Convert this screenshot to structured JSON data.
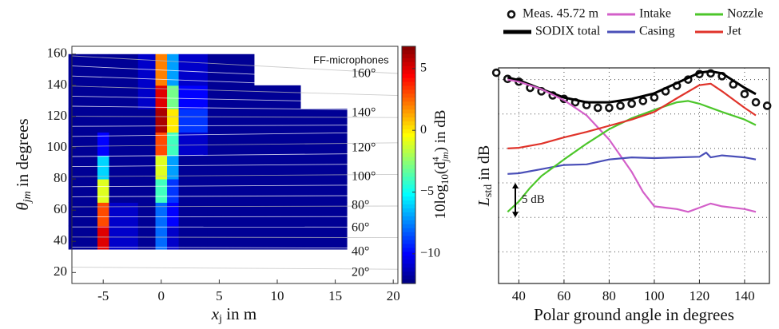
{
  "chart_data": [
    {
      "type": "heatmap",
      "x_edges": [
        -8,
        -5.5,
        -4.5,
        -2,
        -0.5,
        0.5,
        1.5,
        4,
        8,
        12,
        16
      ],
      "y_edges": [
        35,
        50,
        65,
        80,
        95,
        110,
        125,
        140,
        160
      ],
      "z": [
        [
          -12,
          5,
          -11,
          -12,
          -8,
          -11,
          -12,
          -12,
          -12,
          -12
        ],
        [
          -12,
          3,
          -11,
          -12,
          -8,
          -10,
          -12,
          -12,
          -12,
          -12
        ],
        [
          -12,
          -1,
          -12,
          -12,
          -4,
          -9,
          -12,
          -12,
          -12,
          -12
        ],
        [
          -12,
          -6,
          -12,
          -12,
          -1,
          -7,
          -12,
          -12,
          -12,
          -12
        ],
        [
          -12,
          -10,
          -12,
          -12,
          3,
          -4,
          -11,
          -12,
          -12,
          -12
        ],
        [
          -12,
          -12,
          -12,
          -12,
          6,
          0,
          -9,
          -12,
          -12,
          -12
        ],
        [
          -12,
          -12,
          -12,
          -11,
          5,
          -3,
          -10,
          -12,
          -12,
          null
        ],
        [
          -12,
          -12,
          -12,
          -11,
          2,
          -7,
          -11,
          -12,
          null,
          null
        ]
      ],
      "xlim": [
        -7.7,
        20.4
      ],
      "ylim": [
        13,
        165
      ],
      "xticks": [
        -5,
        0,
        5,
        10,
        15,
        20
      ],
      "yticks": [
        20,
        40,
        60,
        80,
        100,
        120,
        140,
        160
      ],
      "zlim": [
        -12.4,
        6.8
      ],
      "colorbar_ticks": [
        5,
        0,
        {
          "value": -5,
          "label": "−5"
        },
        {
          "value": -10,
          "label": "−10"
        }
      ],
      "xlabel": [
        "x",
        "j",
        " in m"
      ],
      "ylabel": [
        "θ",
        "jm",
        " in degrees"
      ],
      "colorbar_label": [
        "10log",
        "10",
        "(d",
        "4",
        "jm",
        ") in dB"
      ],
      "annotation": "FF-microphones",
      "angle_labels": [
        "160°",
        "140°",
        "120°",
        "100°",
        "80°",
        "60°",
        "40°",
        "20°"
      ]
    },
    {
      "type": "line",
      "xlim": [
        31,
        151
      ],
      "ylim": [
        0.4,
        31.7
      ],
      "xticks": [
        40,
        60,
        80,
        100,
        120,
        140
      ],
      "ygrid_lines": [
        5,
        10,
        15,
        20,
        25,
        30
      ],
      "grid": true,
      "xlabel": "Polar ground angle in degrees",
      "ylabel": [
        "L",
        "std",
        " in dB"
      ],
      "scale_bar": {
        "value": 5,
        "from": 10,
        "label": "5 dB"
      },
      "series": [
        {
          "name": "Meas. 45.72 m",
          "color": "#111111",
          "marker": "circle",
          "x": [
            30,
            35,
            40,
            45,
            50,
            55,
            60,
            65,
            70,
            75,
            80,
            85,
            90,
            95,
            100,
            105,
            110,
            115,
            120,
            125,
            130,
            135,
            140,
            145,
            150
          ],
          "values": [
            31,
            30.1,
            29.7,
            28.8,
            28.3,
            27.7,
            27.2,
            26.7,
            26.3,
            25.9,
            25.9,
            26.2,
            26.5,
            26.9,
            27.4,
            28.3,
            29.1,
            30,
            30.8,
            30.9,
            30.5,
            29.3,
            27.9,
            26.7,
            26.2
          ]
        },
        {
          "name": "SODIX total",
          "color": "#000000",
          "marker": "line-thick",
          "x": [
            35,
            40,
            50,
            60,
            70,
            80,
            90,
            100,
            110,
            120,
            125,
            130,
            140,
            145
          ],
          "values": [
            30.3,
            29.9,
            28.6,
            27.4,
            26.7,
            26.7,
            27.2,
            28,
            29.5,
            31,
            31.2,
            30.9,
            28.8,
            27.9
          ]
        },
        {
          "name": "Intake",
          "color": "#d35fc9",
          "marker": "line",
          "x": [
            35,
            40,
            50,
            60,
            70,
            80,
            90,
            95,
            100,
            105,
            110,
            115,
            120,
            125,
            130,
            140,
            145
          ],
          "values": [
            30,
            29.7,
            28.6,
            27,
            24.8,
            21.3,
            16.6,
            13.7,
            11.6,
            11.4,
            11.2,
            10.8,
            11.4,
            12,
            11.6,
            11.2,
            10.8
          ]
        },
        {
          "name": "Casing",
          "color": "#4a4fb8",
          "marker": "line",
          "x": [
            35,
            40,
            50,
            60,
            70,
            80,
            90,
            100,
            110,
            120,
            123,
            125,
            130,
            140,
            145
          ],
          "values": [
            16.3,
            16.4,
            17,
            17.6,
            17.7,
            18.4,
            18.7,
            18.6,
            18.7,
            18.8,
            19.4,
            18.7,
            19,
            18.7,
            18.4
          ]
        },
        {
          "name": "Nozzle",
          "color": "#4cc62a",
          "marker": "line",
          "x": [
            35,
            40,
            45,
            50,
            60,
            70,
            80,
            90,
            100,
            110,
            115,
            120,
            130,
            140,
            145
          ],
          "values": [
            10.8,
            12.3,
            14.3,
            16,
            18.4,
            20.7,
            22.8,
            24.4,
            25.6,
            26.7,
            26.9,
            26.5,
            25.3,
            24.2,
            23.4
          ]
        },
        {
          "name": "Jet",
          "color": "#e0332a",
          "marker": "line",
          "x": [
            35,
            40,
            50,
            60,
            70,
            80,
            90,
            100,
            110,
            120,
            125,
            130,
            140,
            145
          ],
          "values": [
            20,
            20.1,
            20.7,
            21.6,
            22.4,
            23.3,
            24.2,
            25.3,
            27.3,
            29.2,
            29.4,
            28.3,
            25.9,
            24.8
          ]
        }
      ]
    }
  ]
}
